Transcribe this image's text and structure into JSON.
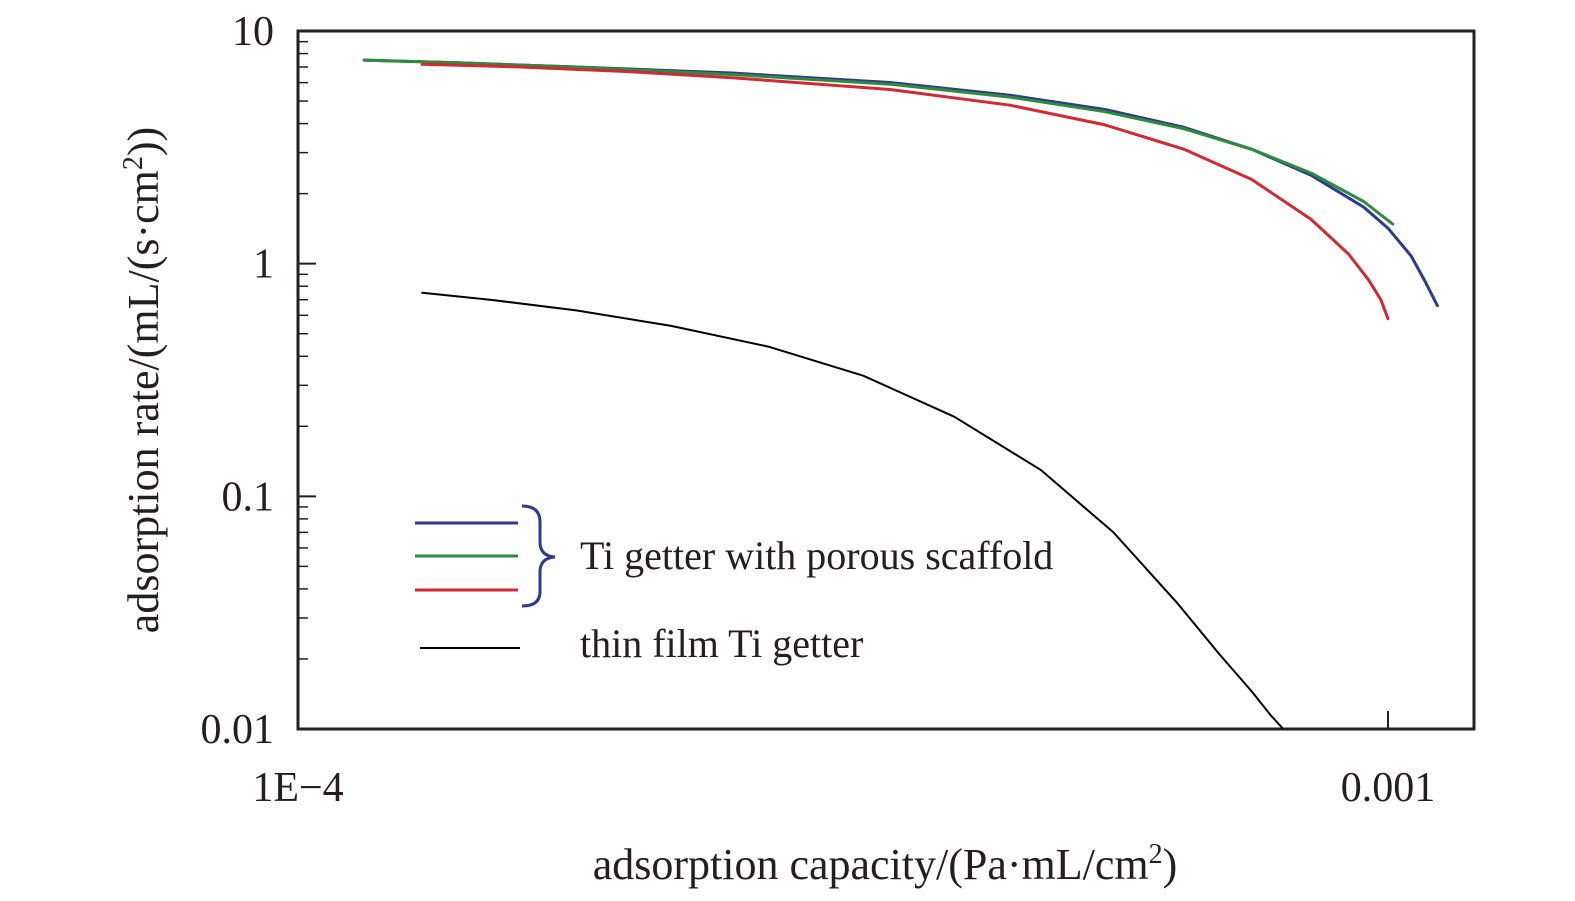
{
  "chart_data": {
    "type": "line",
    "title": "",
    "xlabel": {
      "prefix": "adsorption capacity/(Pa·mL/cm",
      "sup": "2",
      "suffix": ")"
    },
    "ylabel": {
      "prefix": "adsorption rate/(mL/(s·cm",
      "sup": "2",
      "suffix": "))"
    },
    "xscale": "log",
    "yscale": "log",
    "xlim": [
      0.0001,
      0.00112
    ],
    "ylim": [
      0.01,
      10
    ],
    "x_ticks": [
      {
        "value": 0.0001,
        "label": "1E−4"
      },
      {
        "value": 0.001,
        "label": "0.001"
      }
    ],
    "y_ticks": [
      {
        "value": 10,
        "label": "10"
      },
      {
        "value": 1,
        "label": "1"
      },
      {
        "value": 0.1,
        "label": "0.1"
      },
      {
        "value": 0.01,
        "label": "0.01"
      }
    ],
    "grid": false,
    "series": [
      {
        "color": "#2e3a8c",
        "x": [
          0.000115,
          0.00014,
          0.00018,
          0.00025,
          0.00035,
          0.00045,
          0.00055,
          0.00065,
          0.00075,
          0.00085,
          0.00095,
          0.001,
          0.00105,
          0.00108,
          0.00111
        ],
        "y": [
          7.5,
          7.3,
          7.0,
          6.6,
          6.0,
          5.3,
          4.6,
          3.85,
          3.1,
          2.4,
          1.75,
          1.42,
          1.08,
          0.85,
          0.66
        ]
      },
      {
        "color": "#2e8b3e",
        "x": [
          0.000115,
          0.00014,
          0.00018,
          0.00025,
          0.00035,
          0.00045,
          0.00055,
          0.00065,
          0.00075,
          0.00085,
          0.00095,
          0.00101
        ],
        "y": [
          7.5,
          7.3,
          7.0,
          6.5,
          5.9,
          5.2,
          4.5,
          3.8,
          3.1,
          2.45,
          1.85,
          1.48
        ]
      },
      {
        "color": "#d02a35",
        "x": [
          0.00013,
          0.00016,
          0.0002,
          0.00025,
          0.00035,
          0.00045,
          0.00055,
          0.00065,
          0.00075,
          0.00085,
          0.00092,
          0.00096,
          0.000985,
          0.001
        ],
        "y": [
          7.2,
          7.0,
          6.7,
          6.3,
          5.6,
          4.8,
          3.95,
          3.1,
          2.3,
          1.55,
          1.1,
          0.85,
          0.7,
          0.58
        ]
      },
      {
        "color": "#000000",
        "x": [
          0.00013,
          0.00015,
          0.00018,
          0.00022,
          0.00027,
          0.00033,
          0.0004,
          0.00048,
          0.00056,
          0.00064,
          0.0007,
          0.00075,
          0.00078,
          0.0008
        ],
        "y": [
          0.75,
          0.7,
          0.63,
          0.54,
          0.44,
          0.33,
          0.22,
          0.13,
          0.07,
          0.035,
          0.021,
          0.0145,
          0.0115,
          0.0101
        ]
      }
    ],
    "legend": [
      {
        "color": "#2e3a8c"
      },
      {
        "color": "#2e8b3e"
      },
      {
        "color": "#d02a35"
      },
      {
        "color": "#000000",
        "label": "thin film Ti getter"
      }
    ],
    "legend_group_label": "Ti getter with porous scaffold",
    "legend_brace_color": "#2e3a8c",
    "legend_position": "bottom-left"
  }
}
